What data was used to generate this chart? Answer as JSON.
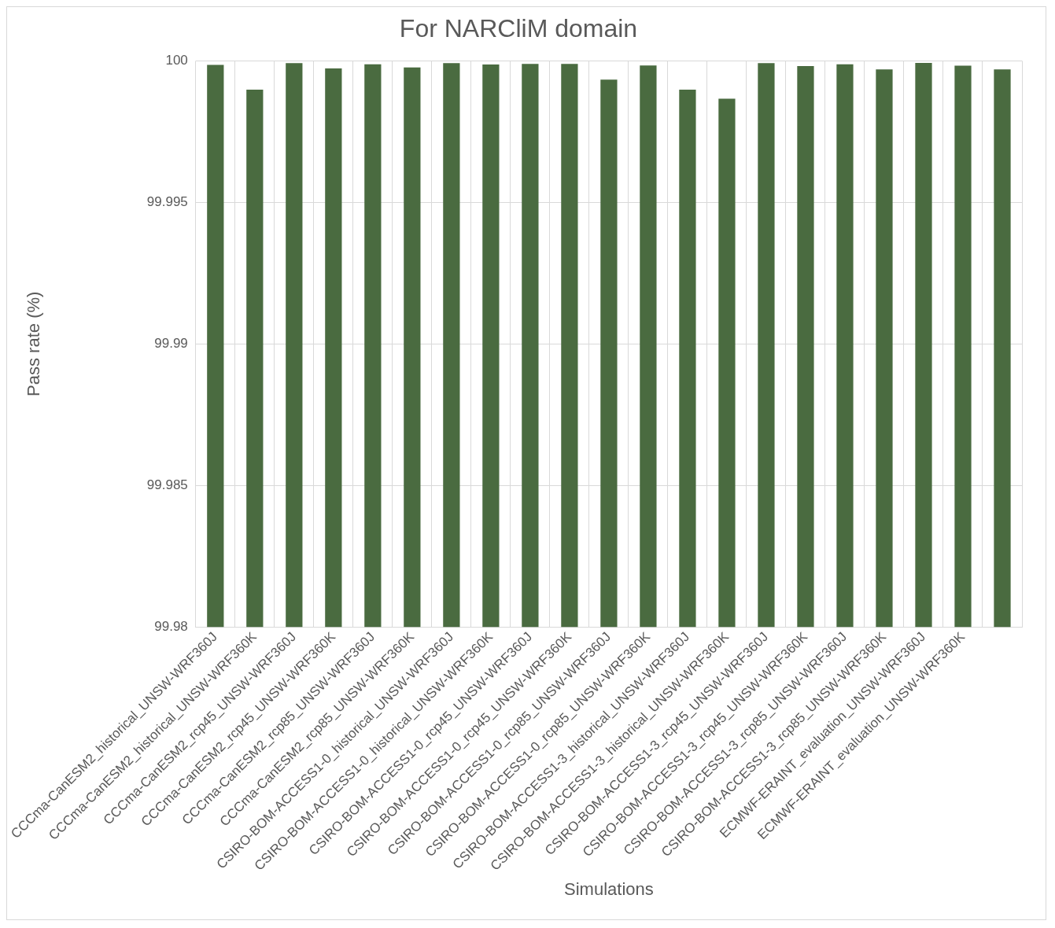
{
  "chart_data": {
    "type": "bar",
    "title": "For NARCliM domain",
    "xlabel": "Simulations",
    "ylabel": "Pass rate (%)",
    "categories": [
      "CCCma-CanESM2_historical_UNSW-WRF360J",
      "CCCma-CanESM2_historical_UNSW-WRF360K",
      "CCCma-CanESM2_rcp45_UNSW-WRF360J",
      "CCCma-CanESM2_rcp45_UNSW-WRF360K",
      "CCCma-CanESM2_rcp85_UNSW-WRF360J",
      "CCCma-CanESM2_rcp85_UNSW-WRF360K",
      "CSIRO-BOM-ACCESS1-0_historical_UNSW-WRF360J",
      "CSIRO-BOM-ACCESS1-0_historical_UNSW-WRF360K",
      "CSIRO-BOM-ACCESS1-0_rcp45_UNSW-WRF360J",
      "CSIRO-BOM-ACCESS1-0_rcp45_UNSW-WRF360K",
      "CSIRO-BOM-ACCESS1-0_rcp85_UNSW-WRF360J",
      "CSIRO-BOM-ACCESS1-0_rcp85_UNSW-WRF360K",
      "CSIRO-BOM-ACCESS1-3_historical_UNSW-WRF360J",
      "CSIRO-BOM-ACCESS1-3_historical_UNSW-WRF360K",
      "CSIRO-BOM-ACCESS1-3_rcp45_UNSW-WRF360J",
      "CSIRO-BOM-ACCESS1-3_rcp45_UNSW-WRF360K",
      "CSIRO-BOM-ACCESS1-3_rcp85_UNSW-WRF360J",
      "CSIRO-BOM-ACCESS1-3_rcp85_UNSW-WRF360K",
      "ECMWF-ERAINT_evaluation_UNSW-WRF360J",
      "ECMWF-ERAINT_evaluation_UNSW-WRF360K",
      null
    ],
    "values": [
      99.99986,
      99.99898,
      99.99992,
      99.99973,
      99.99988,
      99.99977,
      99.99992,
      99.99987,
      99.99989,
      99.99989,
      99.99934,
      99.99984,
      99.99898,
      99.99866,
      99.99992,
      99.99982,
      99.99988,
      99.9997,
      99.99993,
      99.99983,
      99.9997
    ],
    "color": "#4a6b40",
    "ylim": [
      99.98,
      100
    ],
    "yticks": [
      99.98,
      99.985,
      99.99,
      99.995,
      100
    ],
    "grid": true
  }
}
